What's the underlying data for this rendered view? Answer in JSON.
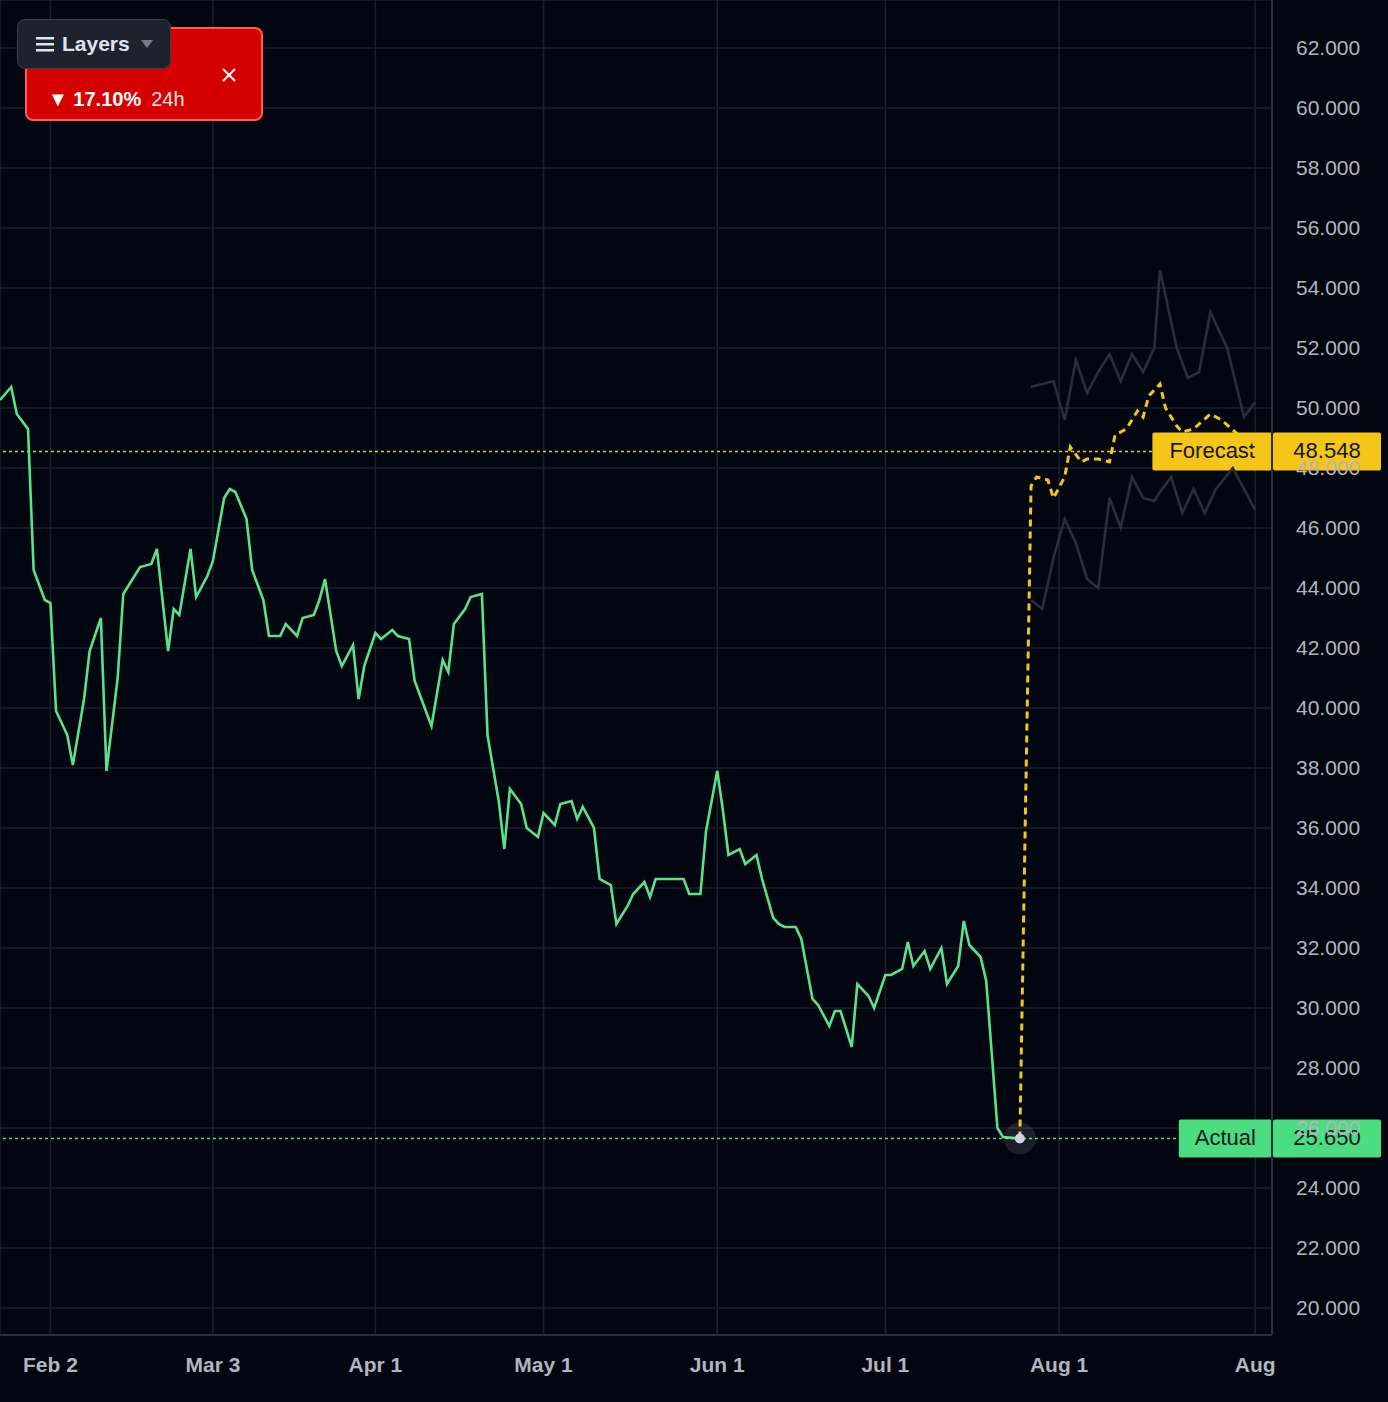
{
  "chart_data": {
    "type": "line",
    "xlim": [
      24,
      251
    ],
    "xticks": [
      {
        "value": 33,
        "label": "Feb 2"
      },
      {
        "value": 62,
        "label": "Mar 3"
      },
      {
        "value": 91,
        "label": "Apr 1"
      },
      {
        "value": 121,
        "label": "May 1"
      },
      {
        "value": 152,
        "label": "Jun 1"
      },
      {
        "value": 182,
        "label": "Jul 1"
      },
      {
        "value": 213,
        "label": "Aug 1"
      },
      {
        "value": 248,
        "label": "Aug"
      }
    ],
    "ylim": [
      19.1,
      63.6
    ],
    "yticks": [
      {
        "value": 20,
        "label": "20.000"
      },
      {
        "value": 22,
        "label": "22.000"
      },
      {
        "value": 24,
        "label": "24.000"
      },
      {
        "value": 26,
        "label": "26.000"
      },
      {
        "value": 28,
        "label": "28.000"
      },
      {
        "value": 30,
        "label": "30.000"
      },
      {
        "value": 32,
        "label": "32.000"
      },
      {
        "value": 34,
        "label": "34.000"
      },
      {
        "value": 36,
        "label": "36.000"
      },
      {
        "value": 38,
        "label": "38.000"
      },
      {
        "value": 40,
        "label": "40.000"
      },
      {
        "value": 42,
        "label": "42.000"
      },
      {
        "value": 44,
        "label": "44.000"
      },
      {
        "value": 46,
        "label": "46.000"
      },
      {
        "value": 48,
        "label": "48.000"
      },
      {
        "value": 50,
        "label": "50.000"
      },
      {
        "value": 52,
        "label": "52.000"
      },
      {
        "value": 54,
        "label": "54.000"
      },
      {
        "value": 56,
        "label": "56.000"
      },
      {
        "value": 58,
        "label": "58.000"
      },
      {
        "value": 60,
        "label": "60.000"
      },
      {
        "value": 62,
        "label": "62.000"
      }
    ],
    "grid": true,
    "series": [
      {
        "color": "#2a2e37",
        "line_style": "solid",
        "x": [
          208,
          212,
          214,
          216,
          218,
          220,
          222,
          224,
          226,
          228,
          230,
          231,
          234,
          236,
          238,
          240,
          243,
          246,
          248
        ],
        "values": [
          50.7,
          50.9,
          49.6,
          51.6,
          50.5,
          51.2,
          51.8,
          50.9,
          51.8,
          51.2,
          52.0,
          54.6,
          52.0,
          51.0,
          51.2,
          53.2,
          52.0,
          49.7,
          50.2
        ]
      },
      {
        "color": "#2a2e37",
        "line_style": "solid",
        "x": [
          208,
          210,
          212,
          214,
          216,
          218,
          220,
          222,
          224,
          226,
          228,
          230,
          231,
          233,
          235,
          237,
          239,
          241,
          244,
          246,
          248
        ],
        "values": [
          43.6,
          43.3,
          45.0,
          46.3,
          45.5,
          44.3,
          44.0,
          47.0,
          46.0,
          47.7,
          47.0,
          46.9,
          47.2,
          47.7,
          46.5,
          47.3,
          46.5,
          47.3,
          48.0,
          47.3,
          46.6
        ]
      },
      {
        "color": "#f5c518",
        "line_style": "dashed",
        "x": [
          206,
          208,
          209,
          211,
          212,
          214,
          215,
          217,
          218,
          220,
          222,
          223,
          225,
          227,
          228,
          229,
          231,
          232,
          234,
          235,
          237,
          240,
          242,
          245,
          247,
          248
        ],
        "values": [
          25.65,
          47.4,
          47.7,
          47.6,
          47.0,
          47.7,
          48.7,
          48.2,
          48.3,
          48.3,
          48.2,
          49.1,
          49.3,
          49.9,
          49.7,
          50.4,
          50.8,
          50.0,
          49.4,
          49.2,
          49.3,
          49.8,
          49.6,
          49.1,
          48.6,
          48.548
        ]
      },
      {
        "color": "#5be08c",
        "line_style": "solid",
        "x": [
          24,
          26,
          27,
          29,
          30,
          32,
          33,
          34,
          36,
          37,
          39,
          40,
          42,
          43,
          45,
          46,
          48,
          49,
          51,
          52,
          54,
          55,
          56,
          58,
          59,
          61,
          62,
          64,
          65,
          66,
          68,
          69,
          71,
          72,
          74,
          75,
          77,
          78,
          80,
          81,
          82,
          84,
          85,
          87,
          88,
          89,
          91,
          92,
          94,
          95,
          97,
          98,
          100,
          101,
          103,
          104,
          105,
          107,
          108,
          110,
          111,
          113,
          114,
          115,
          117,
          118,
          120,
          121,
          123,
          124,
          126,
          127,
          128,
          130,
          131,
          133,
          134,
          136,
          137,
          139,
          140,
          141,
          143,
          144,
          146,
          147,
          149,
          150,
          152,
          153,
          154,
          156,
          157,
          159,
          160,
          162,
          163,
          164,
          166,
          167,
          169,
          170,
          172,
          173,
          174,
          176,
          177,
          179,
          180,
          182,
          183,
          185,
          186,
          187,
          189,
          190,
          192,
          193,
          195,
          196,
          197,
          199,
          200,
          202,
          203,
          206
        ],
        "values": [
          50.27,
          50.7,
          49.8,
          49.3,
          44.6,
          43.6,
          43.5,
          39.9,
          39.1,
          38.1,
          40.3,
          41.9,
          43.0,
          37.9,
          41.0,
          43.8,
          44.4,
          44.7,
          44.8,
          45.3,
          41.9,
          43.3,
          43.1,
          45.3,
          43.7,
          44.4,
          44.9,
          47.0,
          47.3,
          47.2,
          46.3,
          44.6,
          43.6,
          42.4,
          42.4,
          42.8,
          42.4,
          43.0,
          43.1,
          43.6,
          44.3,
          41.9,
          41.4,
          42.1,
          40.3,
          41.4,
          42.5,
          42.3,
          42.6,
          42.4,
          42.3,
          40.9,
          39.9,
          39.4,
          41.6,
          41.2,
          42.8,
          43.3,
          43.7,
          43.8,
          39.1,
          36.9,
          35.3,
          37.3,
          36.8,
          36.0,
          35.7,
          36.5,
          36.1,
          36.8,
          36.9,
          36.3,
          36.7,
          36.0,
          34.3,
          34.1,
          32.8,
          33.4,
          33.8,
          34.2,
          33.7,
          34.3,
          34.3,
          34.3,
          34.3,
          33.8,
          33.8,
          35.9,
          37.9,
          36.6,
          35.1,
          35.3,
          34.8,
          35.1,
          34.3,
          33.0,
          32.8,
          32.7,
          32.7,
          32.3,
          30.3,
          30.1,
          29.4,
          29.9,
          29.9,
          28.7,
          30.8,
          30.4,
          30.0,
          31.1,
          31.1,
          31.3,
          32.2,
          31.4,
          31.9,
          31.3,
          32.0,
          30.8,
          31.4,
          32.9,
          32.1,
          31.7,
          30.9,
          26.0,
          25.7,
          25.65
        ]
      }
    ],
    "annotations": [
      {
        "text": "Forecast",
        "value": 48.548,
        "label": "48.548",
        "color": "#f5c518"
      },
      {
        "text": "Actual",
        "value": 25.65,
        "label": "25.650",
        "color": "#4ade80"
      }
    ],
    "badge": {
      "text": "▼ 17.10%",
      "period": "24h"
    },
    "menu": "Layers"
  }
}
